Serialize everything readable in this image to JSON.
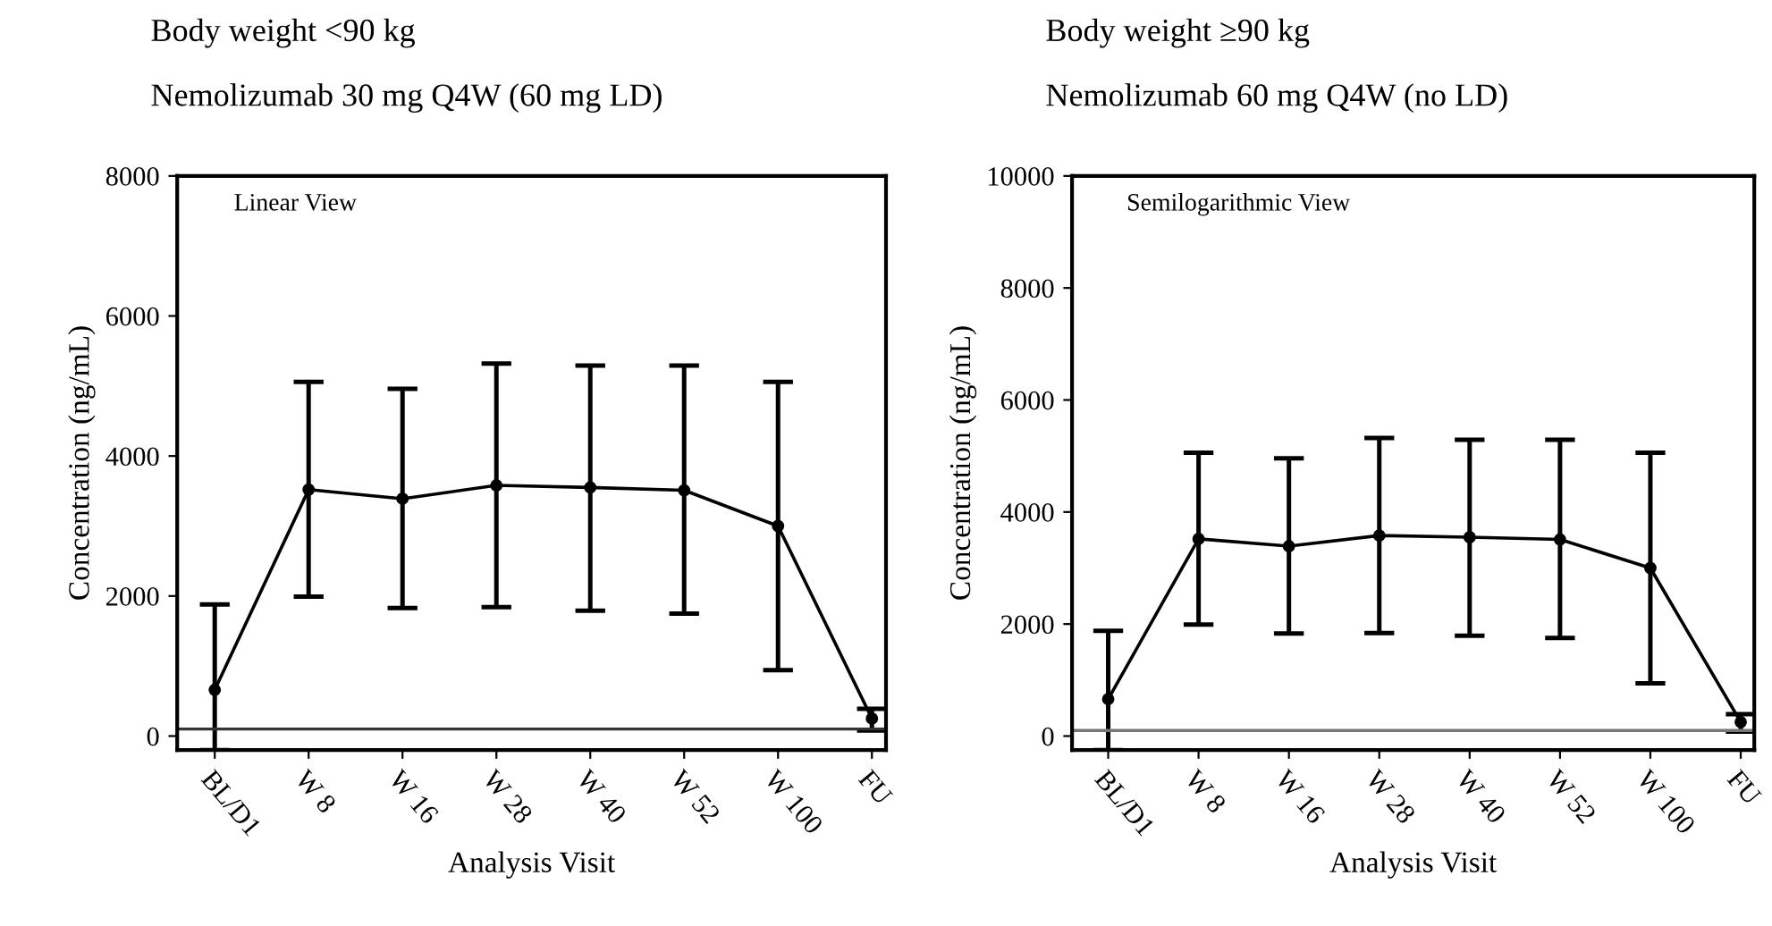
{
  "chart_data": [
    {
      "type": "line",
      "title": "Body weight <90 kg",
      "subtitle": "Nemolizumab 30 mg Q4W (60 mg LD)",
      "xlabel": "Analysis Visit",
      "ylabel": "Concentration (ng/mL)",
      "annotations": [
        "Linear View"
      ],
      "categories": [
        "BL/D1",
        "W 8",
        "W 16",
        "W 28",
        "W 40",
        "W 52",
        "W 100",
        "FU"
      ],
      "series": [
        {
          "color": "#000000",
          "values": [
            660,
            3520,
            3390,
            3580,
            3550,
            3510,
            3000,
            250
          ],
          "errors": [
            [
              -200,
              1880
            ],
            [
              1990,
              5060
            ],
            [
              1830,
              4960
            ],
            [
              1840,
              5320
            ],
            [
              1790,
              5290
            ],
            [
              1750,
              5290
            ],
            [
              940,
              5060
            ],
            [
              80,
              390
            ]
          ]
        }
      ],
      "ylim": [
        -200,
        8000
      ],
      "yticks": [
        0,
        2000,
        4000,
        6000,
        8000
      ],
      "ref_lines": [
        {
          "axis": "y",
          "value": 100,
          "color": "#333333"
        }
      ],
      "grid": false,
      "legend": false,
      "marker": "circle",
      "line_style": "solid"
    },
    {
      "type": "line",
      "title": "Body weight ≥90 kg",
      "subtitle": "Nemolizumab 60 mg Q4W (no LD)",
      "xlabel": "Analysis Visit",
      "ylabel": "Concentration (ng/mL)",
      "annotations": [
        "Semilogarithmic View"
      ],
      "categories": [
        "BL/D1",
        "W 8",
        "W 16",
        "W 28",
        "W 40",
        "W 52",
        "W 100",
        "FU"
      ],
      "series": [
        {
          "color": "#000000",
          "values": [
            660,
            3520,
            3390,
            3580,
            3550,
            3510,
            3000,
            250
          ],
          "errors": [
            [
              -250,
              1880
            ],
            [
              1990,
              5060
            ],
            [
              1830,
              4960
            ],
            [
              1840,
              5320
            ],
            [
              1790,
              5290
            ],
            [
              1750,
              5290
            ],
            [
              940,
              5060
            ],
            [
              80,
              390
            ]
          ]
        }
      ],
      "ylim": [
        -250,
        10000
      ],
      "yticks": [
        0,
        2000,
        4000,
        6000,
        8000,
        10000
      ],
      "ref_lines": [
        {
          "axis": "y",
          "value": 100,
          "color": "#777777"
        }
      ],
      "grid": false,
      "legend": false,
      "marker": "circle",
      "line_style": "solid"
    }
  ]
}
